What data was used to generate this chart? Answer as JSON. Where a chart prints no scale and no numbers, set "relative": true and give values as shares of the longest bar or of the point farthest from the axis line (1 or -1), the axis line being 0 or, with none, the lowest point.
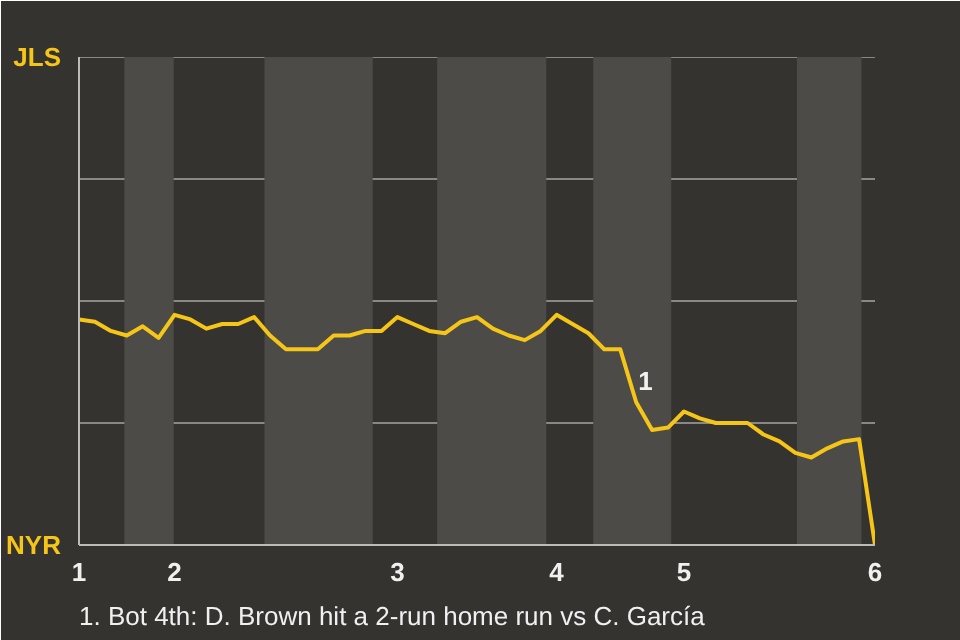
{
  "chart_data": {
    "type": "line",
    "relative": true,
    "categories": [
      "1",
      null,
      null,
      null,
      null,
      null,
      "2",
      null,
      null,
      null,
      null,
      null,
      null,
      null,
      null,
      null,
      null,
      null,
      null,
      null,
      "3",
      null,
      null,
      null,
      null,
      null,
      null,
      null,
      null,
      null,
      "4",
      null,
      null,
      null,
      null,
      null,
      null,
      null,
      "5",
      null,
      null,
      null,
      null,
      null,
      null,
      null,
      null,
      null,
      null,
      null,
      "6"
    ],
    "series": [
      {
        "color": "#f5c518",
        "values": [
          0.98,
          0.97,
          0.93,
          0.91,
          0.95,
          0.9,
          1.0,
          0.98,
          0.94,
          0.96,
          0.96,
          0.99,
          0.91,
          0.85,
          0.85,
          0.85,
          0.91,
          0.91,
          0.93,
          0.93,
          0.99,
          0.96,
          0.93,
          0.92,
          0.97,
          0.99,
          0.94,
          0.91,
          0.89,
          0.93,
          1,
          0.96,
          0.92,
          0.85,
          0.85,
          0.62,
          0.5,
          0.51,
          0.58,
          0.55,
          0.53,
          0.53,
          0.53,
          0.48,
          0.45,
          0.4,
          0.38,
          0.42,
          0.45,
          0.46,
          0
        ]
      }
    ],
    "marker": "none",
    "line_style": "solid",
    "ref_lines": [
      {
        "axis": "y",
        "value": 0.53,
        "color": "#8a8886"
      },
      {
        "axis": "y",
        "value": 1.06,
        "color": "#8a8886"
      },
      {
        "axis": "y",
        "value": 1.59,
        "color": "#8a8886"
      }
    ],
    "annotations": [
      "JLS",
      "NYR",
      "1",
      "1. Bot 4th: D. Brown hit a 2-run home run vs C. García"
    ]
  }
}
